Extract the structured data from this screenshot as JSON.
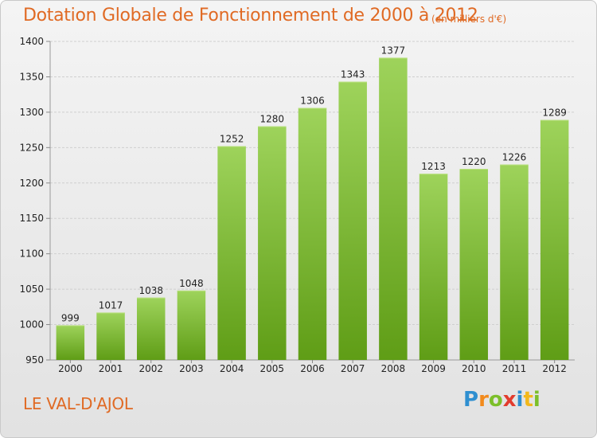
{
  "title": "Dotation Globale de Fonctionnement de 2000 à 2012",
  "subtitle": "(en milliers d'€)",
  "commune": "LE VAL-D'AJOL",
  "logo": {
    "letters": [
      "P",
      "r",
      "o",
      "x",
      "i",
      "t",
      "i"
    ],
    "colors": [
      "#2f8fd0",
      "#f28a1c",
      "#7cbf2a",
      "#e23c2e",
      "#2f8fd0",
      "#f2b81c",
      "#7cbf2a"
    ]
  },
  "colors": {
    "bar_top": "#9ed35b",
    "bar_bottom": "#5f9d16",
    "title": "#e06a24"
  },
  "chart_data": {
    "type": "bar",
    "categories": [
      "2000",
      "2001",
      "2002",
      "2003",
      "2004",
      "2005",
      "2006",
      "2007",
      "2008",
      "2009",
      "2010",
      "2011",
      "2012"
    ],
    "values": [
      999,
      1017,
      1038,
      1048,
      1252,
      1280,
      1306,
      1343,
      1377,
      1213,
      1220,
      1226,
      1289
    ],
    "ylim": [
      950,
      1400
    ],
    "yticks": [
      950,
      1000,
      1050,
      1100,
      1150,
      1200,
      1250,
      1300,
      1350,
      1400
    ],
    "grid": true
  }
}
